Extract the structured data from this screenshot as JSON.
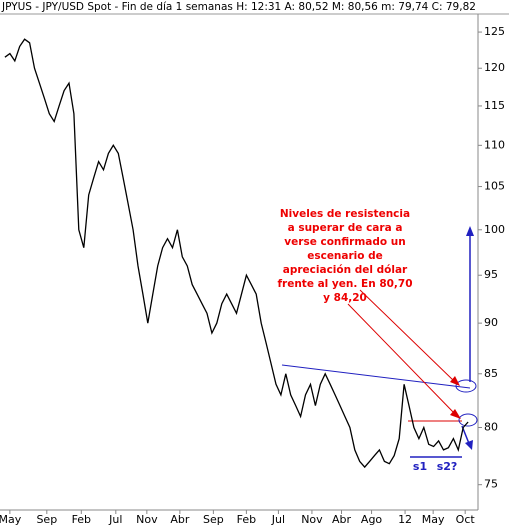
{
  "chart_data": {
    "type": "line",
    "title": "JPYUS - JPY/USD Spot - Fin de día 1 semanas H: 12:31 A: 80,52 M: 80,56 m: 79,74 C: 79,82",
    "log_scale": true,
    "color": "#000000",
    "x": [
      0,
      1,
      2,
      3,
      4,
      5,
      6,
      7,
      8,
      9,
      10,
      11,
      12,
      13,
      14,
      15,
      16,
      17,
      18,
      19,
      20,
      21,
      22,
      23,
      24,
      25,
      26,
      27,
      28,
      29,
      30,
      31,
      32,
      33,
      34,
      35,
      36,
      37,
      38,
      39,
      40,
      41,
      42,
      43,
      44,
      45,
      46,
      47,
      48,
      49,
      50,
      51,
      52,
      53,
      54,
      55,
      56,
      57,
      58,
      59,
      60,
      61,
      62,
      63,
      64,
      65,
      66,
      67,
      68,
      69,
      70,
      71,
      72,
      73,
      74,
      75,
      76,
      77,
      78,
      79,
      80,
      81,
      82,
      83,
      84,
      85,
      86,
      87,
      88,
      89,
      90,
      91,
      92,
      93,
      94
    ],
    "values": [
      121.5,
      122,
      121,
      123,
      124,
      123.5,
      120,
      118,
      116,
      114,
      113,
      115,
      117,
      118,
      114,
      100,
      98,
      104,
      106,
      108,
      107,
      109,
      110,
      109,
      106,
      103,
      100,
      96,
      93,
      90,
      93,
      96,
      98,
      99,
      98,
      100,
      97,
      96,
      94,
      93,
      92,
      91,
      89,
      90,
      92,
      93,
      92,
      91,
      93,
      95,
      94,
      93,
      90,
      88,
      86,
      84,
      83,
      85,
      83,
      82,
      81,
      83,
      84,
      82,
      84,
      85,
      84,
      83,
      82,
      81,
      80,
      78,
      77,
      76.5,
      77,
      77.5,
      78,
      77,
      76.8,
      77.5,
      79,
      84,
      82,
      80,
      79,
      80,
      78.5,
      78.3,
      78.8,
      78,
      78.2,
      79,
      78,
      80,
      80.5
    ],
    "xlim": [
      -1,
      96
    ],
    "xticks": [
      {
        "value": 1,
        "label": "May"
      },
      {
        "value": 8.5,
        "label": "Sep"
      },
      {
        "value": 15.5,
        "label": "Feb"
      },
      {
        "value": 22.5,
        "label": "Jul"
      },
      {
        "value": 28.8,
        "label": "Nov"
      },
      {
        "value": 35.5,
        "label": "Abr"
      },
      {
        "value": 42.3,
        "label": "Sep"
      },
      {
        "value": 49,
        "label": "Feb"
      },
      {
        "value": 55.5,
        "label": "Jul"
      },
      {
        "value": 62.3,
        "label": "Nov"
      },
      {
        "value": 68.3,
        "label": "Abr"
      },
      {
        "value": 74.4,
        "label": "Ago"
      },
      {
        "value": 81.2,
        "label": "12"
      },
      {
        "value": 86.9,
        "label": "May"
      },
      {
        "value": 93.4,
        "label": "Oct"
      }
    ],
    "ylim": [
      73.3,
      127
    ],
    "yticks": [
      75,
      80,
      85,
      90,
      95,
      100,
      105,
      110,
      115,
      120,
      125
    ],
    "annotation": [
      "Niveles de resistencia",
      "a superar de cara a",
      "verse confirmado un",
      "escenario de",
      "apreciación del dólar",
      "frente al yen. En 80,70",
      "y 84,20"
    ],
    "support_labels": [
      "s1",
      "s2?"
    ]
  }
}
